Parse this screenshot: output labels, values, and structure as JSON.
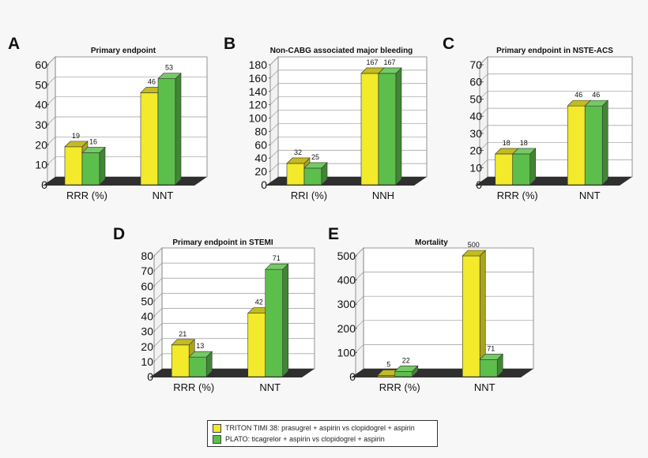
{
  "colors": {
    "series_a": "#f2ea2a",
    "series_b": "#5dbf4b",
    "floor": "#2f2f2f",
    "wall": "#ffffff",
    "grid": "#9a9a9a"
  },
  "legend": {
    "items": [
      {
        "label": "TRITON TIMI 38: prasugrel + aspirin vs clopidogrel + aspirin",
        "color": "#f2ea2a"
      },
      {
        "label": "PLATO: ticagrelor + aspirin vs clopidogrel + aspirin",
        "color": "#5dbf4b"
      }
    ]
  },
  "chart_data": [
    {
      "panel": "A",
      "title": "Primary endpoint",
      "type": "bar",
      "categories": [
        "RRR (%)",
        "NNT"
      ],
      "series": [
        {
          "name": "TRITON TIMI 38",
          "values": [
            19,
            46
          ]
        },
        {
          "name": "PLATO",
          "values": [
            16,
            53
          ]
        }
      ],
      "ylim": [
        0,
        60
      ],
      "yticks": [
        0,
        10,
        20,
        30,
        40,
        50,
        60
      ]
    },
    {
      "panel": "B",
      "title": "Non-CABG associated major bleeding",
      "type": "bar",
      "categories": [
        "RRI (%)",
        "NNH"
      ],
      "series": [
        {
          "name": "TRITON TIMI 38",
          "values": [
            32,
            167
          ]
        },
        {
          "name": "PLATO",
          "values": [
            25,
            167
          ]
        }
      ],
      "ylim": [
        0,
        180
      ],
      "yticks": [
        0,
        20,
        40,
        60,
        80,
        100,
        120,
        140,
        160,
        180
      ]
    },
    {
      "panel": "C",
      "title": "Primary endpoint in NSTE-ACS",
      "type": "bar",
      "categories": [
        "RRR (%)",
        "NNT"
      ],
      "series": [
        {
          "name": "TRITON TIMI 38",
          "values": [
            18,
            46
          ]
        },
        {
          "name": "PLATO",
          "values": [
            18,
            46
          ]
        }
      ],
      "ylim": [
        0,
        70
      ],
      "yticks": [
        0,
        10,
        20,
        30,
        40,
        50,
        60,
        70
      ]
    },
    {
      "panel": "D",
      "title": "Primary endpoint in STEMI",
      "type": "bar",
      "categories": [
        "RRR (%)",
        "NNT"
      ],
      "series": [
        {
          "name": "TRITON TIMI 38",
          "values": [
            21,
            42
          ]
        },
        {
          "name": "PLATO",
          "values": [
            13,
            71
          ]
        }
      ],
      "ylim": [
        0,
        80
      ],
      "yticks": [
        0,
        10,
        20,
        30,
        40,
        50,
        60,
        70,
        80
      ]
    },
    {
      "panel": "E",
      "title": "Mortality",
      "type": "bar",
      "categories": [
        "RRR (%)",
        "NNT"
      ],
      "series": [
        {
          "name": "TRITON TIMI 38",
          "values": [
            5,
            500
          ]
        },
        {
          "name": "PLATO",
          "values": [
            22,
            71
          ]
        }
      ],
      "ylim": [
        0,
        500
      ],
      "yticks": [
        0,
        100,
        200,
        300,
        400,
        500
      ]
    }
  ]
}
